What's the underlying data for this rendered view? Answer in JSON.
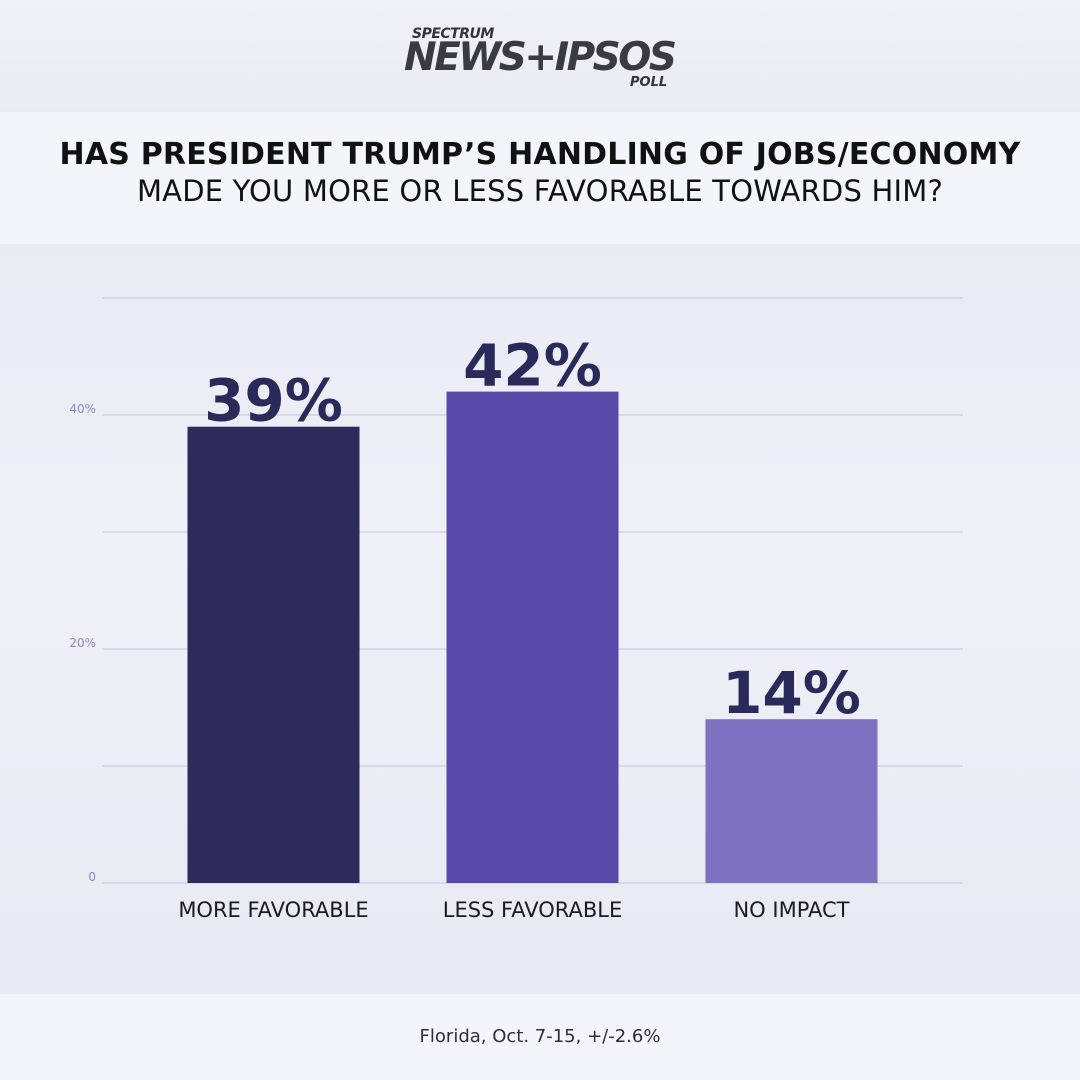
{
  "logo": {
    "top": "SPECTRUM",
    "main": "NEWS+IPSOS",
    "bottom": "POLL"
  },
  "title": {
    "line1": "HAS PRESIDENT TRUMP’S HANDLING OF JOBS/ECONOMY",
    "line2": "MADE YOU MORE OR LESS FAVORABLE TOWARDS HIM?"
  },
  "footer": {
    "note": "Florida, Oct. 7-15, +/-2.6%"
  },
  "chart_data": {
    "type": "bar",
    "categories": [
      "MORE FAVORABLE",
      "LESS FAVORABLE",
      "NO IMPACT"
    ],
    "values": [
      39,
      42,
      14
    ],
    "data_labels": [
      "39%",
      "42%",
      "14%"
    ],
    "colors": [
      "#2d2a5c",
      "#5849a8",
      "#7e72c0"
    ],
    "ylim": [
      0,
      50
    ],
    "yticks": [
      {
        "value": 0,
        "label": "0"
      },
      {
        "value": 20,
        "label": "20%"
      },
      {
        "value": 40,
        "label": "40%"
      }
    ],
    "gridlines": [
      0,
      10,
      20,
      30,
      40,
      50
    ],
    "grid": true,
    "grid_color": "#c3c3dd",
    "label_color": "#2a2a5a",
    "tick_color": "#8a88b8"
  }
}
